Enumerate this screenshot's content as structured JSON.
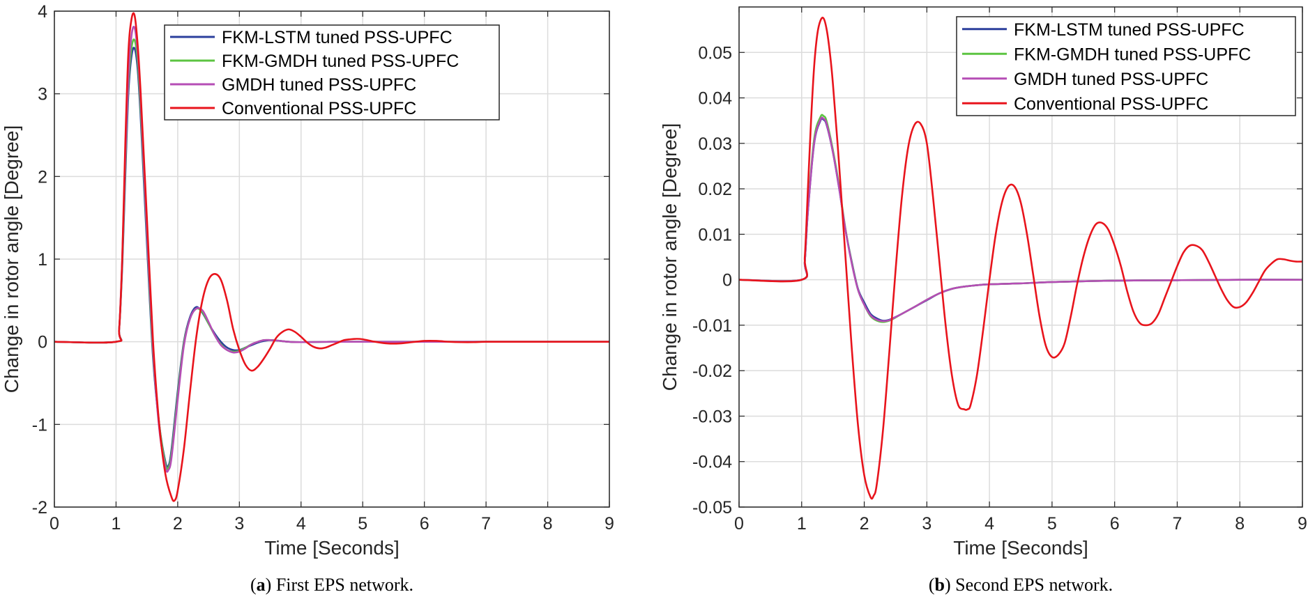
{
  "chart_data": [
    {
      "type": "line",
      "caption_letter": "a",
      "caption_text": " First EPS network.",
      "xlabel": "Time [Seconds]",
      "ylabel": "Change in rotor angle [Degree]",
      "xlim": [
        0,
        9
      ],
      "ylim": [
        -2,
        4
      ],
      "xticks": [
        "0",
        "1",
        "2",
        "3",
        "4",
        "5",
        "6",
        "7",
        "8",
        "9"
      ],
      "yticks": [
        "-2",
        "-1",
        "0",
        "1",
        "2",
        "3",
        "4"
      ],
      "grid": true,
      "legend_position": "top-right",
      "series": [
        {
          "name": "FKM-LSTM tuned PSS-UPFC",
          "color": "#2b3f9c",
          "x": [
            0,
            1.0,
            1.05,
            1.1,
            1.15,
            1.2,
            1.25,
            1.3,
            1.35,
            1.4,
            1.5,
            1.6,
            1.7,
            1.8,
            1.85,
            1.9,
            2.0,
            2.1,
            2.2,
            2.3,
            2.4,
            2.5,
            2.6,
            2.7,
            2.8,
            2.9,
            3.0,
            3.1,
            3.2,
            3.3,
            3.4,
            3.5,
            3.6,
            3.8,
            4.0,
            4.5,
            5.0,
            9.0
          ],
          "y": [
            0,
            0,
            0.15,
            0.9,
            2.0,
            3.0,
            3.45,
            3.55,
            3.3,
            2.7,
            1.2,
            -0.2,
            -1.0,
            -1.45,
            -1.5,
            -1.3,
            -0.6,
            0.0,
            0.3,
            0.42,
            0.35,
            0.22,
            0.1,
            0.0,
            -0.07,
            -0.1,
            -0.1,
            -0.07,
            -0.04,
            -0.01,
            0.01,
            0.02,
            0.015,
            0.0,
            -0.005,
            0.0,
            0.0,
            0.0
          ]
        },
        {
          "name": "FKM-GMDH tuned PSS-UPFC",
          "color": "#5cc441",
          "x": [
            0,
            1.0,
            1.05,
            1.1,
            1.15,
            1.2,
            1.25,
            1.3,
            1.35,
            1.4,
            1.5,
            1.6,
            1.7,
            1.8,
            1.85,
            1.9,
            2.0,
            2.1,
            2.2,
            2.3,
            2.4,
            2.5,
            2.6,
            2.7,
            2.8,
            2.9,
            3.0,
            3.1,
            3.2,
            3.3,
            3.4,
            3.5,
            3.6,
            3.8,
            4.0,
            4.5,
            5.0,
            9.0
          ],
          "y": [
            0,
            0,
            0.15,
            0.95,
            2.1,
            3.1,
            3.55,
            3.65,
            3.4,
            2.8,
            1.3,
            -0.15,
            -1.0,
            -1.48,
            -1.52,
            -1.35,
            -0.65,
            -0.02,
            0.28,
            0.4,
            0.36,
            0.22,
            0.08,
            -0.03,
            -0.1,
            -0.12,
            -0.11,
            -0.07,
            -0.03,
            0.0,
            0.02,
            0.02,
            0.015,
            0.0,
            -0.005,
            0.0,
            0.0,
            0.0
          ]
        },
        {
          "name": "GMDH tuned PSS-UPFC",
          "color": "#b54db5",
          "x": [
            0,
            1.0,
            1.05,
            1.1,
            1.15,
            1.2,
            1.25,
            1.3,
            1.35,
            1.4,
            1.5,
            1.6,
            1.7,
            1.8,
            1.85,
            1.9,
            2.0,
            2.1,
            2.2,
            2.3,
            2.4,
            2.5,
            2.6,
            2.7,
            2.8,
            2.9,
            3.0,
            3.1,
            3.2,
            3.3,
            3.4,
            3.5,
            3.6,
            3.8,
            4.0,
            4.5,
            5.0,
            9.0
          ],
          "y": [
            0,
            0,
            0.15,
            1.0,
            2.2,
            3.2,
            3.7,
            3.8,
            3.5,
            2.9,
            1.35,
            -0.1,
            -1.05,
            -1.52,
            -1.55,
            -1.4,
            -0.7,
            -0.05,
            0.28,
            0.4,
            0.38,
            0.24,
            0.08,
            -0.04,
            -0.1,
            -0.13,
            -0.12,
            -0.08,
            -0.03,
            0.0,
            0.02,
            0.02,
            0.015,
            0.0,
            -0.005,
            0.0,
            0.0,
            0.0
          ]
        },
        {
          "name": "Conventional PSS-UPFC",
          "color": "#e8141c",
          "x": [
            0,
            1.0,
            1.05,
            1.1,
            1.15,
            1.2,
            1.25,
            1.3,
            1.35,
            1.4,
            1.5,
            1.6,
            1.7,
            1.8,
            1.9,
            1.95,
            2.0,
            2.1,
            2.2,
            2.3,
            2.4,
            2.5,
            2.6,
            2.7,
            2.8,
            2.9,
            3.0,
            3.1,
            3.2,
            3.3,
            3.4,
            3.5,
            3.6,
            3.7,
            3.8,
            3.9,
            4.0,
            4.1,
            4.2,
            4.3,
            4.4,
            4.5,
            4.6,
            4.7,
            4.8,
            4.9,
            5.0,
            5.2,
            5.4,
            5.6,
            5.8,
            6.0,
            6.2,
            6.4,
            6.6,
            6.8,
            7.0,
            7.5,
            8.0,
            8.5,
            9.0
          ],
          "y": [
            0,
            0,
            0.15,
            1.0,
            2.4,
            3.5,
            3.9,
            3.95,
            3.6,
            3.0,
            1.5,
            0.0,
            -1.0,
            -1.6,
            -1.88,
            -1.92,
            -1.8,
            -1.3,
            -0.6,
            0.05,
            0.5,
            0.75,
            0.82,
            0.75,
            0.5,
            0.15,
            -0.1,
            -0.28,
            -0.35,
            -0.3,
            -0.2,
            -0.08,
            0.05,
            0.12,
            0.15,
            0.12,
            0.06,
            -0.01,
            -0.06,
            -0.08,
            -0.07,
            -0.04,
            -0.01,
            0.02,
            0.03,
            0.035,
            0.03,
            0.0,
            -0.02,
            -0.02,
            -0.005,
            0.01,
            0.01,
            0.0,
            -0.005,
            -0.005,
            0.0,
            0.0,
            0.0,
            0.0,
            0.0
          ]
        }
      ]
    },
    {
      "type": "line",
      "caption_letter": "b",
      "caption_text": " Second EPS network.",
      "xlabel": "Time [Seconds]",
      "ylabel": "Change in rotor angle [Degree]",
      "xlim": [
        0,
        9
      ],
      "ylim": [
        -0.05,
        0.06
      ],
      "xticks": [
        "0",
        "1",
        "2",
        "3",
        "4",
        "5",
        "6",
        "7",
        "8",
        "9"
      ],
      "yticks": [
        "-0.05",
        "-0.04",
        "-0.03",
        "-0.02",
        "-0.01",
        "0",
        "0.01",
        "0.02",
        "0.03",
        "0.04",
        "0.05"
      ],
      "grid": true,
      "legend_position": "top-right",
      "series": [
        {
          "name": "FKM-LSTM tuned PSS-UPFC",
          "color": "#2b3f9c",
          "x": [
            0,
            1.0,
            1.05,
            1.1,
            1.2,
            1.3,
            1.35,
            1.4,
            1.5,
            1.6,
            1.7,
            1.8,
            1.9,
            2.0,
            2.1,
            2.2,
            2.3,
            2.4,
            2.5,
            2.6,
            2.8,
            3.0,
            3.2,
            3.4,
            3.6,
            3.8,
            4.0,
            4.5,
            5.0,
            6.0,
            7.0,
            8.0,
            9.0
          ],
          "y": [
            0,
            0,
            0.004,
            0.015,
            0.03,
            0.035,
            0.0352,
            0.034,
            0.028,
            0.02,
            0.011,
            0.004,
            -0.002,
            -0.005,
            -0.0075,
            -0.0085,
            -0.009,
            -0.0088,
            -0.0082,
            -0.0075,
            -0.006,
            -0.0045,
            -0.003,
            -0.002,
            -0.0015,
            -0.0012,
            -0.001,
            -0.0008,
            -0.0005,
            -0.0002,
            -0.0001,
            0.0,
            0.0
          ]
        },
        {
          "name": "FKM-GMDH tuned PSS-UPFC",
          "color": "#5cc441",
          "x": [
            0,
            1.0,
            1.05,
            1.1,
            1.2,
            1.3,
            1.35,
            1.4,
            1.5,
            1.6,
            1.7,
            1.8,
            1.9,
            2.0,
            2.1,
            2.2,
            2.3,
            2.4,
            2.5,
            2.6,
            2.8,
            3.0,
            3.2,
            3.4,
            3.6,
            3.8,
            4.0,
            4.5,
            5.0,
            6.0,
            7.0,
            8.0,
            9.0
          ],
          "y": [
            0,
            0,
            0.004,
            0.0155,
            0.031,
            0.0358,
            0.036,
            0.0348,
            0.0285,
            0.0205,
            0.0112,
            0.0038,
            -0.0022,
            -0.0055,
            -0.008,
            -0.009,
            -0.0093,
            -0.009,
            -0.0083,
            -0.0075,
            -0.006,
            -0.0044,
            -0.003,
            -0.002,
            -0.0015,
            -0.0012,
            -0.001,
            -0.0008,
            -0.0005,
            -0.0002,
            -0.0001,
            0.0,
            0.0
          ]
        },
        {
          "name": "GMDH tuned PSS-UPFC",
          "color": "#b54db5",
          "x": [
            0,
            1.0,
            1.05,
            1.1,
            1.2,
            1.3,
            1.35,
            1.4,
            1.5,
            1.6,
            1.7,
            1.8,
            1.9,
            2.0,
            2.1,
            2.2,
            2.3,
            2.4,
            2.5,
            2.6,
            2.8,
            3.0,
            3.2,
            3.4,
            3.6,
            3.8,
            4.0,
            4.5,
            5.0,
            6.0,
            7.0,
            8.0,
            9.0
          ],
          "y": [
            0,
            0,
            0.004,
            0.015,
            0.0302,
            0.0352,
            0.0354,
            0.0342,
            0.028,
            0.02,
            0.011,
            0.0036,
            -0.0022,
            -0.0055,
            -0.0078,
            -0.0088,
            -0.0091,
            -0.0089,
            -0.0082,
            -0.0075,
            -0.006,
            -0.0044,
            -0.003,
            -0.002,
            -0.0015,
            -0.0012,
            -0.001,
            -0.0008,
            -0.0005,
            -0.0002,
            -0.0001,
            0.0,
            0.0
          ]
        },
        {
          "name": "Conventional PSS-UPFC",
          "color": "#e8141c",
          "x": [
            0,
            1.0,
            1.05,
            1.1,
            1.15,
            1.2,
            1.25,
            1.3,
            1.35,
            1.4,
            1.45,
            1.5,
            1.6,
            1.7,
            1.8,
            1.9,
            2.0,
            2.1,
            2.15,
            2.2,
            2.3,
            2.4,
            2.5,
            2.6,
            2.7,
            2.8,
            2.9,
            3.0,
            3.1,
            3.2,
            3.3,
            3.4,
            3.5,
            3.6,
            3.65,
            3.7,
            3.8,
            3.9,
            4.0,
            4.1,
            4.2,
            4.3,
            4.4,
            4.5,
            4.6,
            4.7,
            4.8,
            4.9,
            5.0,
            5.1,
            5.2,
            5.3,
            5.4,
            5.5,
            5.6,
            5.7,
            5.8,
            5.9,
            6.0,
            6.1,
            6.2,
            6.3,
            6.4,
            6.5,
            6.6,
            6.7,
            6.8,
            6.9,
            7.0,
            7.1,
            7.2,
            7.3,
            7.4,
            7.5,
            7.6,
            7.7,
            7.8,
            7.9,
            8.0,
            8.1,
            8.2,
            8.3,
            8.4,
            8.5,
            8.6,
            8.7,
            8.8,
            8.9,
            9.0
          ],
          "y": [
            0,
            0,
            0.005,
            0.02,
            0.035,
            0.047,
            0.054,
            0.057,
            0.0575,
            0.055,
            0.05,
            0.043,
            0.025,
            0.005,
            -0.015,
            -0.032,
            -0.043,
            -0.0478,
            -0.0475,
            -0.045,
            -0.033,
            -0.016,
            0.002,
            0.018,
            0.029,
            0.034,
            0.0343,
            0.03,
            0.018,
            0.004,
            -0.01,
            -0.021,
            -0.0275,
            -0.0285,
            -0.0285,
            -0.0275,
            -0.021,
            -0.011,
            0.0,
            0.01,
            0.017,
            0.0205,
            0.0205,
            0.017,
            0.01,
            0.001,
            -0.008,
            -0.0145,
            -0.017,
            -0.0165,
            -0.014,
            -0.008,
            -0.001,
            0.005,
            0.0095,
            0.0122,
            0.0125,
            0.011,
            0.0075,
            0.003,
            -0.0025,
            -0.007,
            -0.0095,
            -0.01,
            -0.0095,
            -0.0075,
            -0.004,
            -0.0005,
            0.003,
            0.006,
            0.0075,
            0.0075,
            0.0065,
            0.004,
            0.001,
            -0.002,
            -0.0045,
            -0.006,
            -0.006,
            -0.005,
            -0.003,
            -0.0005,
            0.002,
            0.0035,
            0.0045,
            0.0045,
            0.0042,
            0.004,
            0.004
          ]
        }
      ]
    }
  ]
}
